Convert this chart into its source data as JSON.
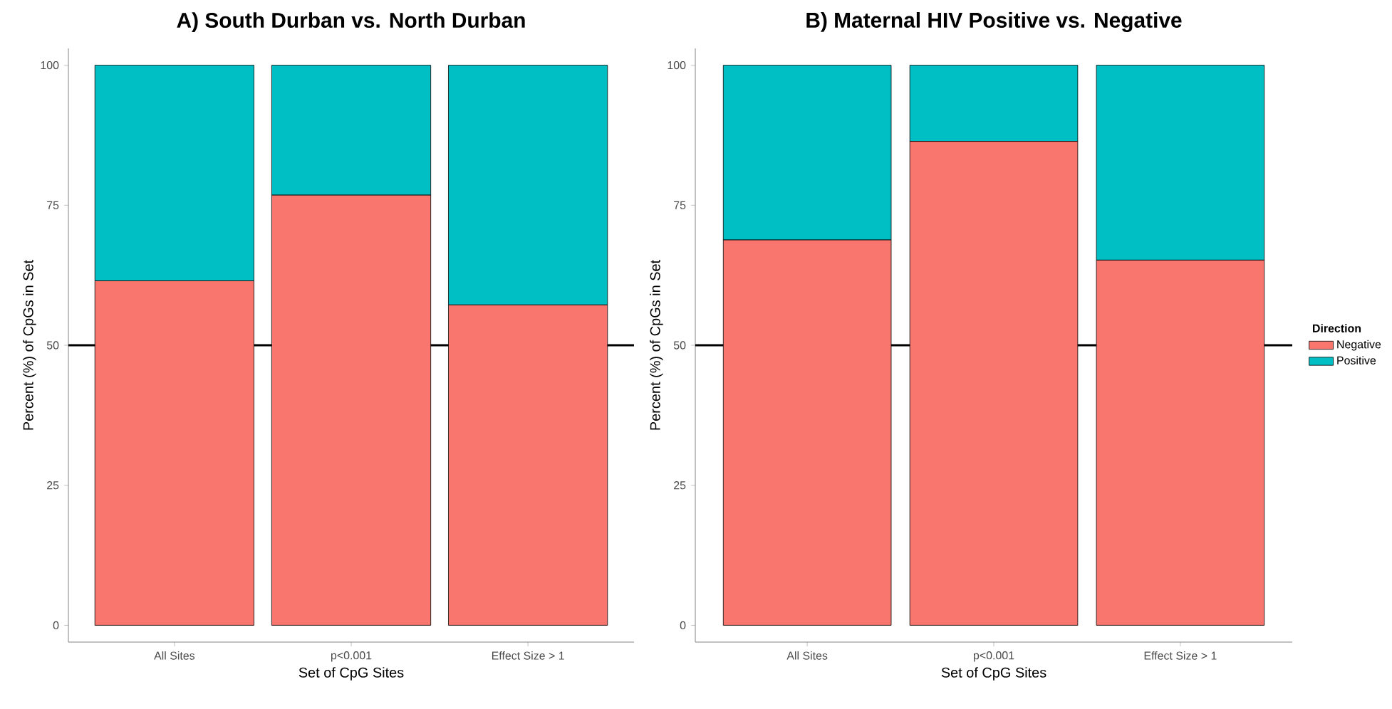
{
  "chart_data": [
    {
      "type": "bar",
      "stacked": true,
      "title": "A) South Durban vs. North Durban",
      "xlabel": "Set of CpG Sites",
      "ylabel": "Percent (%) of CpGs in Set",
      "categories": [
        "All Sites",
        "p<0.001",
        "Effect Size > 1"
      ],
      "series": [
        {
          "color": "#f8766d",
          "values": [
            61.5,
            76.8,
            57.2
          ]
        },
        {
          "color": "#00bfc4",
          "values": [
            38.5,
            23.2,
            42.8
          ]
        }
      ],
      "ylim": [
        -3,
        103
      ],
      "yticks": [
        0,
        25,
        50,
        75,
        100
      ],
      "grid": false,
      "legend": false,
      "ref_lines": [
        {
          "axis": "y",
          "value": 50,
          "color": "#000000"
        }
      ]
    },
    {
      "type": "bar",
      "stacked": true,
      "title": "B) Maternal HIV Positive vs. Negative",
      "xlabel": "Set of CpG Sites",
      "ylabel": "Percent (%) of CpGs in Set",
      "categories": [
        "All Sites",
        "p<0.001",
        "Effect Size > 1"
      ],
      "series": [
        {
          "name": "Negative",
          "color": "#f8766d",
          "values": [
            68.8,
            86.4,
            65.2
          ]
        },
        {
          "name": "Positive",
          "color": "#00bfc4",
          "values": [
            31.2,
            13.6,
            34.8
          ]
        }
      ],
      "ylim": [
        -3,
        103
      ],
      "yticks": [
        0,
        25,
        50,
        75,
        100
      ],
      "grid": false,
      "legend": "right",
      "legend_title": "Direction",
      "ref_lines": [
        {
          "axis": "y",
          "value": 50,
          "color": "#000000"
        }
      ]
    }
  ]
}
